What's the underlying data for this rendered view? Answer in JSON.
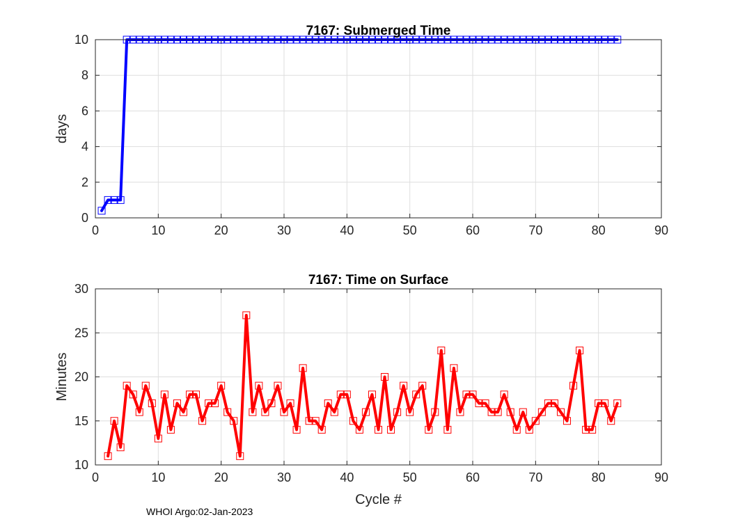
{
  "chart_data": [
    {
      "type": "line",
      "title": "7167: Submerged Time",
      "xlabel": "",
      "ylabel": "days",
      "xlim": [
        0,
        90
      ],
      "ylim": [
        0,
        10
      ],
      "xticks": [
        0,
        10,
        20,
        30,
        40,
        50,
        60,
        70,
        80,
        90
      ],
      "yticks": [
        0,
        2,
        4,
        6,
        8,
        10
      ],
      "grid": true,
      "color": "#0000ff",
      "marker": "square",
      "series": [
        {
          "name": "Submerged Time",
          "x": [
            1,
            2,
            3,
            4,
            5,
            6,
            7,
            8,
            9,
            10,
            11,
            12,
            13,
            14,
            15,
            16,
            17,
            18,
            19,
            20,
            21,
            22,
            23,
            24,
            25,
            26,
            27,
            28,
            29,
            30,
            31,
            32,
            33,
            34,
            35,
            36,
            37,
            38,
            39,
            40,
            41,
            42,
            43,
            44,
            45,
            46,
            47,
            48,
            49,
            50,
            51,
            52,
            53,
            54,
            55,
            56,
            57,
            58,
            59,
            60,
            61,
            62,
            63,
            64,
            65,
            66,
            67,
            68,
            69,
            70,
            71,
            72,
            73,
            74,
            75,
            76,
            77,
            78,
            79,
            80,
            81,
            82,
            83
          ],
          "y": [
            0.4,
            1,
            1,
            1,
            10,
            10,
            10,
            10,
            10,
            10,
            10,
            10,
            10,
            10,
            10,
            10,
            10,
            10,
            10,
            10,
            10,
            10,
            10,
            10,
            10,
            10,
            10,
            10,
            10,
            10,
            10,
            10,
            10,
            10,
            10,
            10,
            10,
            10,
            10,
            10,
            10,
            10,
            10,
            10,
            10,
            10,
            10,
            10,
            10,
            10,
            10,
            10,
            10,
            10,
            10,
            10,
            10,
            10,
            10,
            10,
            10,
            10,
            10,
            10,
            10,
            10,
            10,
            10,
            10,
            10,
            10,
            10,
            10,
            10,
            10,
            10,
            10,
            10,
            10,
            10,
            10,
            10,
            10
          ]
        }
      ]
    },
    {
      "type": "line",
      "title": "7167: Time on Surface",
      "xlabel": "Cycle #",
      "ylabel": "Minutes",
      "xlim": [
        0,
        90
      ],
      "ylim": [
        10,
        30
      ],
      "xticks": [
        0,
        10,
        20,
        30,
        40,
        50,
        60,
        70,
        80,
        90
      ],
      "yticks": [
        10,
        15,
        20,
        25,
        30
      ],
      "grid": true,
      "color": "#ff0000",
      "marker": "square",
      "series": [
        {
          "name": "Time on Surface",
          "x": [
            2,
            3,
            4,
            5,
            6,
            7,
            8,
            9,
            10,
            11,
            12,
            13,
            14,
            15,
            16,
            17,
            18,
            19,
            20,
            21,
            22,
            23,
            24,
            25,
            26,
            27,
            28,
            29,
            30,
            31,
            32,
            33,
            34,
            35,
            36,
            37,
            38,
            39,
            40,
            41,
            42,
            43,
            44,
            45,
            46,
            47,
            48,
            49,
            50,
            51,
            52,
            53,
            54,
            55,
            56,
            57,
            58,
            59,
            60,
            61,
            62,
            63,
            64,
            65,
            66,
            67,
            68,
            69,
            70,
            71,
            72,
            73,
            74,
            75,
            76,
            77,
            78,
            79,
            80,
            81,
            82,
            83
          ],
          "y": [
            11,
            15,
            12,
            19,
            18,
            16,
            19,
            17,
            13,
            18,
            14,
            17,
            16,
            18,
            18,
            15,
            17,
            17,
            19,
            16,
            15,
            11,
            27,
            16,
            19,
            16,
            17,
            19,
            16,
            17,
            14,
            21,
            15,
            15,
            14,
            17,
            16,
            18,
            18,
            15,
            14,
            16,
            18,
            14,
            20,
            14,
            16,
            19,
            16,
            18,
            19,
            14,
            16,
            23,
            14,
            21,
            16,
            18,
            18,
            17,
            17,
            16,
            16,
            18,
            16,
            14,
            16,
            14,
            15,
            16,
            17,
            17,
            16,
            15,
            19,
            23,
            14,
            14,
            17,
            17,
            15,
            17
          ]
        }
      ]
    }
  ],
  "footer": "WHOI Argo:02-Jan-2023"
}
